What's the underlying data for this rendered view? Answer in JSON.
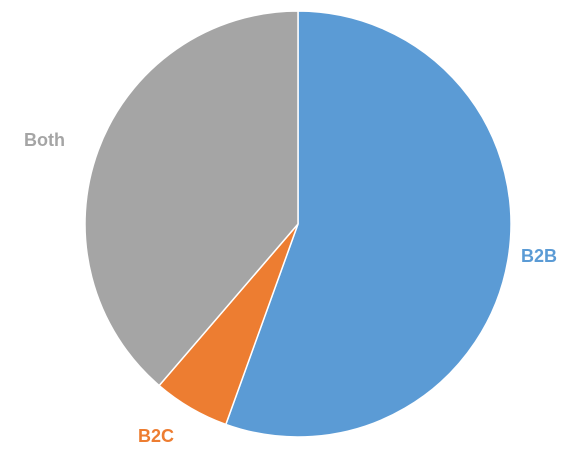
{
  "chart_data": {
    "type": "pie",
    "title": "",
    "start_angle_deg": 0,
    "direction": "clockwise",
    "slices": [
      {
        "label": "B2B",
        "value": 55.5,
        "color": "#5B9BD5",
        "label_color": "#5B9BD5"
      },
      {
        "label": "B2C",
        "value": 5.8,
        "color": "#ED7D31",
        "label_color": "#ED7D31"
      },
      {
        "label": "Both",
        "value": 38.7,
        "color": "#A5A5A5",
        "label_color": "#A5A5A5"
      }
    ],
    "slice_border_color": "#ffffff",
    "legend": "none",
    "data_labels": "category-name-outside"
  }
}
